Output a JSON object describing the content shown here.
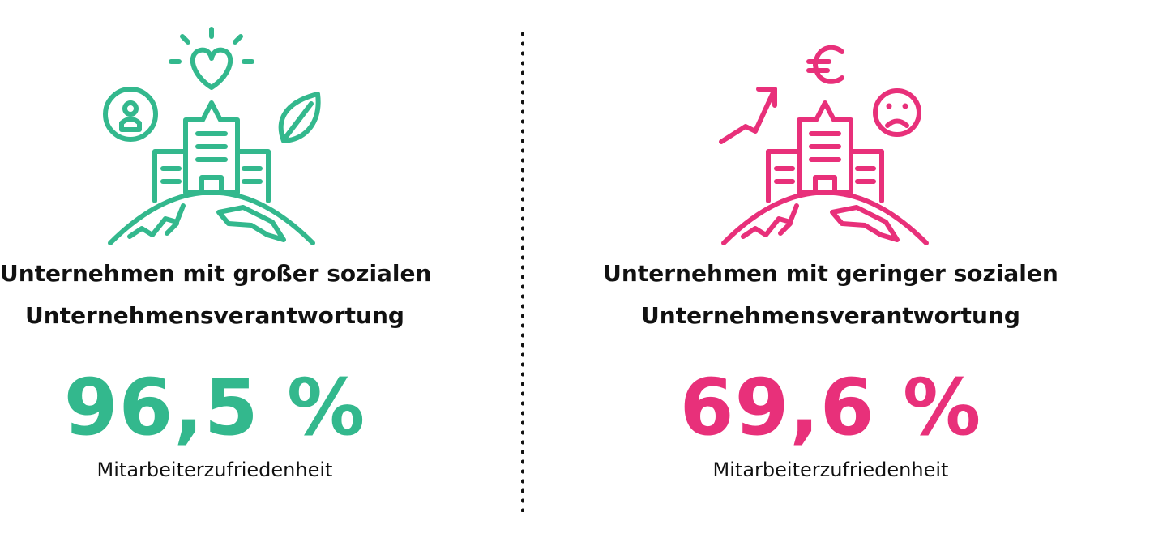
{
  "colors": {
    "green": "#33b88d",
    "pink": "#e8307a",
    "text": "#111111",
    "divider": "#111111"
  },
  "left": {
    "heading_line1": "Unternehmen mit großer sozialen",
    "heading_line2": "Unternehmensverantwortung",
    "value": "96,5 %",
    "label": "Mitarbeiterzufriedenheit",
    "icons": [
      "heart-sun-icon",
      "employee-icon",
      "leaf-icon",
      "building-on-globe-icon"
    ]
  },
  "right": {
    "heading_line1": "Unternehmen mit geringer sozialen",
    "heading_line2": "Unternehmensverantwortung",
    "value": "69,6 %",
    "label": "Mitarbeiterzufriedenheit",
    "icons": [
      "euro-icon",
      "trend-up-arrow-icon",
      "sad-face-icon",
      "building-on-globe-icon"
    ]
  }
}
